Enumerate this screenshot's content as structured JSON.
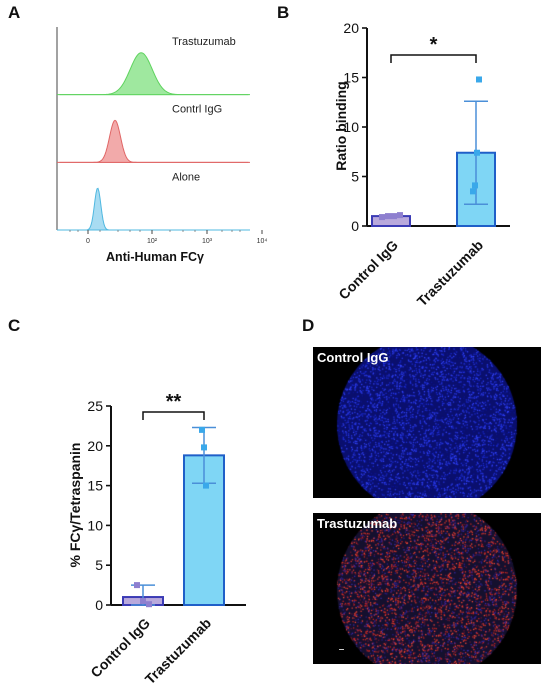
{
  "panels": {
    "a": "A",
    "b": "B",
    "c": "C",
    "d": "D"
  },
  "chart_data": [
    {
      "panel": "A",
      "type": "histogram",
      "xlabel": "Anti-Human FCγ",
      "x_scale": "log",
      "x_ticks": [
        "0",
        "10²",
        "10³",
        "10⁴"
      ],
      "tracks": [
        {
          "name": "Trastuzumab",
          "peak": 45,
          "color": "#5fd35f",
          "fill": "#9fe89f"
        },
        {
          "name": "Contrl IgG",
          "peak": 6,
          "color": "#e06666",
          "fill": "#f2aaaa"
        },
        {
          "name": "Alone",
          "peak": 1,
          "color": "#4fb8e0",
          "fill": "#a8dcf2"
        }
      ]
    },
    {
      "panel": "B",
      "type": "bar",
      "categories": [
        "Control IgG",
        "Trastuzumab"
      ],
      "values": [
        1.0,
        7.4
      ],
      "error_sd": [
        0.1,
        5.2
      ],
      "points": [
        [
          0.9,
          1.0,
          1.0,
          1.1
        ],
        [
          3.5,
          4.1,
          7.4,
          14.8
        ]
      ],
      "colors": [
        "#b9a9dc",
        "#7fd6f5"
      ],
      "ylabel": "Ratio binding",
      "ylim": [
        0,
        20
      ],
      "yticks": [
        0,
        5,
        10,
        15,
        20
      ],
      "significance": "*"
    },
    {
      "panel": "C",
      "type": "bar",
      "categories": [
        "Control IgG",
        "Trastuzumab"
      ],
      "values": [
        1.0,
        18.8
      ],
      "error_sd": [
        1.5,
        3.5
      ],
      "points": [
        [
          2.5,
          0.5,
          0.1
        ],
        [
          22.0,
          19.8,
          15.0
        ]
      ],
      "colors": [
        "#b9a9dc",
        "#7fd6f5"
      ],
      "ylabel": "% FCγ/Tetraspanin",
      "ylim": [
        0,
        25
      ],
      "yticks": [
        0,
        5,
        10,
        15,
        20,
        25
      ],
      "significance": "**"
    }
  ],
  "images": {
    "top_label": "Control IgG",
    "bottom_label": "Trastuzumab"
  }
}
